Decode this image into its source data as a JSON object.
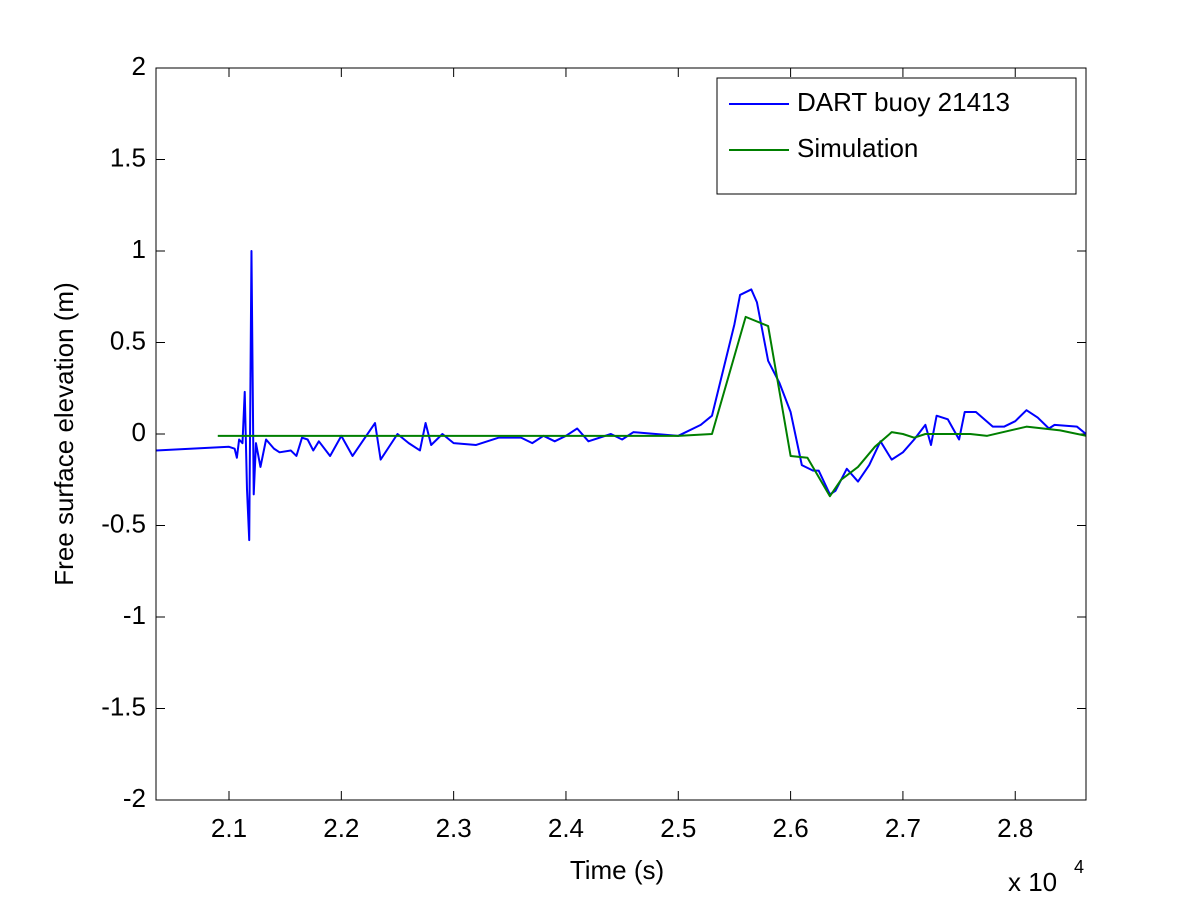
{
  "chart_data": {
    "type": "line",
    "xlabel": "Time (s)",
    "ylabel": "Free surface elevation (m)",
    "x_multiplier": "x 10",
    "x_multiplier_power": "4",
    "xlim": [
      2.035,
      2.863
    ],
    "ylim": [
      -2,
      2
    ],
    "xticks": [
      2.1,
      2.2,
      2.3,
      2.4,
      2.5,
      2.6,
      2.7,
      2.8
    ],
    "yticks": [
      -2,
      -1.5,
      -1,
      -0.5,
      0,
      0.5,
      1,
      1.5,
      2
    ],
    "grid": false,
    "legend": "top-right",
    "series": [
      {
        "name": "DART buoy 21413",
        "color": "#0000ff",
        "x": [
          2.035,
          2.1,
          2.105,
          2.107,
          2.109,
          2.112,
          2.114,
          2.116,
          2.118,
          2.12,
          2.122,
          2.124,
          2.128,
          2.133,
          2.14,
          2.145,
          2.155,
          2.16,
          2.165,
          2.17,
          2.175,
          2.18,
          2.19,
          2.2,
          2.21,
          2.22,
          2.23,
          2.235,
          2.25,
          2.26,
          2.27,
          2.275,
          2.28,
          2.29,
          2.3,
          2.32,
          2.34,
          2.36,
          2.37,
          2.38,
          2.39,
          2.4,
          2.41,
          2.42,
          2.44,
          2.45,
          2.46,
          2.48,
          2.5,
          2.52,
          2.53,
          2.54,
          2.55,
          2.555,
          2.565,
          2.57,
          2.58,
          2.59,
          2.6,
          2.61,
          2.62,
          2.625,
          2.635,
          2.64,
          2.65,
          2.66,
          2.67,
          2.68,
          2.69,
          2.7,
          2.71,
          2.72,
          2.725,
          2.73,
          2.74,
          2.75,
          2.755,
          2.765,
          2.78,
          2.79,
          2.8,
          2.81,
          2.82,
          2.83,
          2.835,
          2.855,
          2.863
        ],
        "values": [
          -0.09,
          -0.07,
          -0.08,
          -0.13,
          -0.03,
          -0.05,
          0.23,
          -0.3,
          -0.58,
          1.0,
          -0.33,
          -0.05,
          -0.18,
          -0.03,
          -0.08,
          -0.1,
          -0.09,
          -0.12,
          -0.02,
          -0.03,
          -0.09,
          -0.04,
          -0.12,
          -0.01,
          -0.12,
          -0.03,
          0.06,
          -0.14,
          0.0,
          -0.05,
          -0.09,
          0.06,
          -0.06,
          0.0,
          -0.05,
          -0.06,
          -0.02,
          -0.02,
          -0.05,
          -0.01,
          -0.04,
          -0.01,
          0.03,
          -0.04,
          0.0,
          -0.03,
          0.01,
          0.0,
          -0.01,
          0.05,
          0.1,
          0.35,
          0.6,
          0.76,
          0.79,
          0.72,
          0.4,
          0.28,
          0.12,
          -0.17,
          -0.2,
          -0.2,
          -0.33,
          -0.31,
          -0.19,
          -0.26,
          -0.17,
          -0.04,
          -0.14,
          -0.1,
          -0.03,
          0.05,
          -0.06,
          0.1,
          0.08,
          -0.03,
          0.12,
          0.12,
          0.04,
          0.04,
          0.07,
          0.13,
          0.09,
          0.03,
          0.05,
          0.04,
          0.0
        ]
      },
      {
        "name": "Simulation",
        "color": "#007f00",
        "x": [
          2.09,
          2.5,
          2.53,
          2.56,
          2.58,
          2.6,
          2.615,
          2.635,
          2.645,
          2.66,
          2.675,
          2.69,
          2.7,
          2.71,
          2.72,
          2.74,
          2.76,
          2.775,
          2.81,
          2.84,
          2.863
        ],
        "values": [
          -0.01,
          -0.01,
          0.0,
          0.64,
          0.59,
          -0.12,
          -0.13,
          -0.34,
          -0.25,
          -0.18,
          -0.07,
          0.01,
          0.0,
          -0.02,
          0.0,
          0.0,
          0.0,
          -0.01,
          0.04,
          0.02,
          -0.01
        ]
      }
    ]
  }
}
